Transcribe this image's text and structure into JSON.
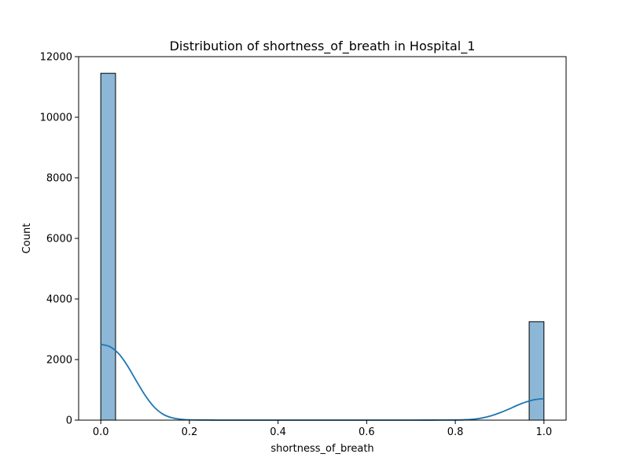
{
  "chart_data": {
    "type": "bar",
    "title": "Distribution of shortness_of_breath in Hospital_1",
    "xlabel": "shortness_of_breath",
    "ylabel": "Count",
    "xlim": [
      -0.05,
      1.05
    ],
    "ylim": [
      0,
      12000
    ],
    "x_ticks": [
      0.0,
      0.2,
      0.4,
      0.6,
      0.8,
      1.0
    ],
    "x_tick_labels": [
      "0.0",
      "0.2",
      "0.4",
      "0.6",
      "0.8",
      "1.0"
    ],
    "y_ticks": [
      0,
      2000,
      4000,
      6000,
      8000,
      10000,
      12000
    ],
    "y_tick_labels": [
      "0",
      "2000",
      "4000",
      "6000",
      "8000",
      "10000",
      "12000"
    ],
    "bins": [
      {
        "x0": 0.0,
        "x1": 0.0333,
        "count": 11450
      },
      {
        "x0": 0.9667,
        "x1": 1.0,
        "count": 3250
      }
    ],
    "kde_points": [
      [
        0.0,
        2500
      ],
      [
        0.02,
        2430
      ],
      [
        0.04,
        2200
      ],
      [
        0.06,
        1800
      ],
      [
        0.08,
        1300
      ],
      [
        0.1,
        820
      ],
      [
        0.12,
        440
      ],
      [
        0.14,
        200
      ],
      [
        0.16,
        80
      ],
      [
        0.18,
        30
      ],
      [
        0.2,
        10
      ],
      [
        0.25,
        2
      ],
      [
        0.3,
        0
      ],
      [
        0.5,
        0
      ],
      [
        0.7,
        0
      ],
      [
        0.75,
        2
      ],
      [
        0.8,
        5
      ],
      [
        0.82,
        12
      ],
      [
        0.84,
        30
      ],
      [
        0.86,
        70
      ],
      [
        0.88,
        140
      ],
      [
        0.9,
        240
      ],
      [
        0.92,
        360
      ],
      [
        0.94,
        490
      ],
      [
        0.96,
        600
      ],
      [
        0.98,
        680
      ],
      [
        1.0,
        710
      ]
    ],
    "grid": false,
    "colors": {
      "bar_fill": "#8db7d6",
      "bar_edge": "#000000",
      "kde_line": "#1f77b4"
    }
  }
}
